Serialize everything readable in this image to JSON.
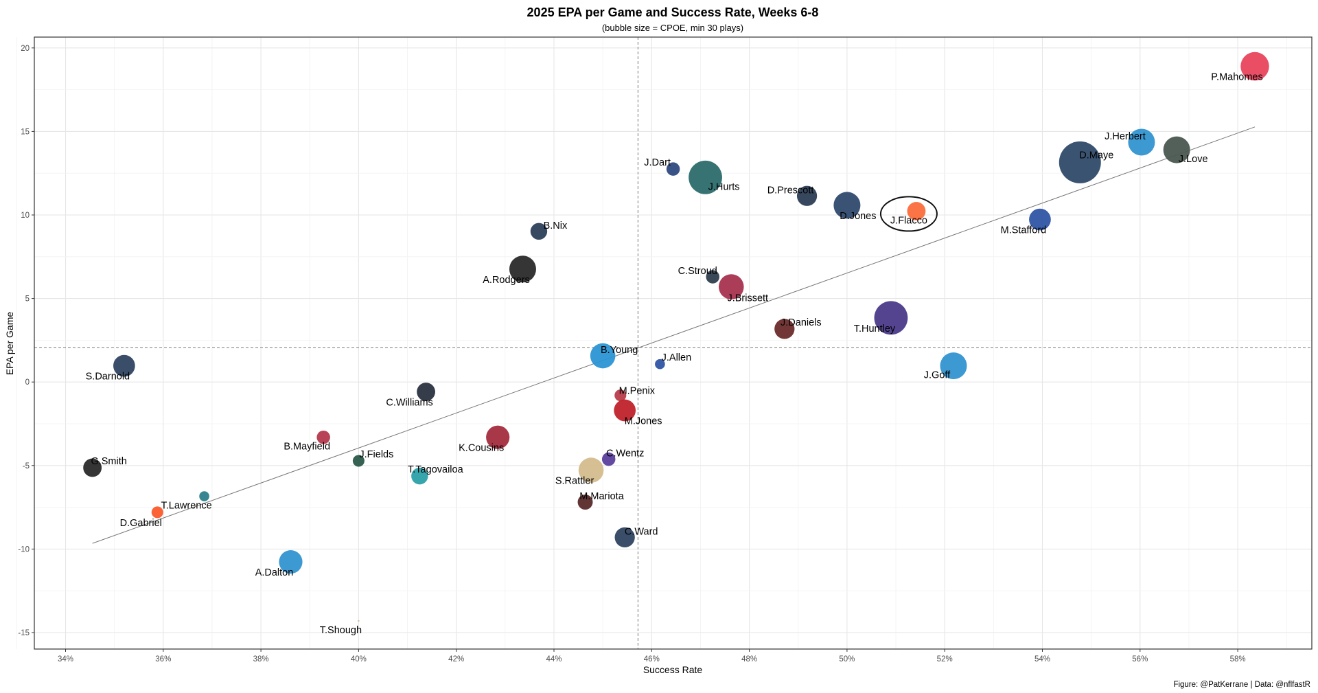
{
  "chart_data": {
    "type": "scatter",
    "title": "2025 EPA per Game and Success Rate, Weeks 6-8",
    "subtitle": "(bubble size = CPOE, min 30 plays)",
    "xlabel": "Success Rate",
    "ylabel": "EPA per Game",
    "caption": "Figure: @PatKerrane | Data: @nflfastR",
    "xlim": [
      33.4,
      59.6
    ],
    "ylim": [
      -15.8,
      20.6
    ],
    "x_ticks": [
      34,
      36,
      38,
      40,
      42,
      44,
      46,
      48,
      50,
      52,
      54,
      56,
      58
    ],
    "x_tick_labels": [
      "34%",
      "36%",
      "38%",
      "40%",
      "42%",
      "44%",
      "46%",
      "48%",
      "50%",
      "52%",
      "54%",
      "56%",
      "58%"
    ],
    "y_ticks": [
      -15,
      -10,
      -5,
      0,
      5,
      10,
      15,
      20
    ],
    "y_tick_labels": [
      "-15",
      "-10",
      "-5",
      "0",
      "5",
      "10",
      "15",
      "20"
    ],
    "grid": true,
    "reference_lines": {
      "x_mean": 45.72,
      "y_mean": 2.07
    },
    "trend_line": {
      "x": [
        34.55,
        58.35
      ],
      "y": [
        -9.66,
        15.27
      ]
    },
    "highlight": "J.Flacco",
    "points": [
      {
        "name": "P.Mahomes",
        "x": 58.35,
        "y": 18.9,
        "size": 17,
        "color": "#e8445d"
      },
      {
        "name": "J.Herbert",
        "x": 56.03,
        "y": 14.36,
        "size": 16,
        "color": "#3194d0"
      },
      {
        "name": "J.Love",
        "x": 56.75,
        "y": 13.9,
        "size": 16,
        "color": "#4a5750"
      },
      {
        "name": "D.Maye",
        "x": 54.77,
        "y": 13.15,
        "size": 25,
        "color": "#2f4a68"
      },
      {
        "name": "J.Dart",
        "x": 46.44,
        "y": 12.75,
        "size": 8,
        "color": "#2f4a80"
      },
      {
        "name": "J.Hurts",
        "x": 47.1,
        "y": 12.25,
        "size": 20,
        "color": "#2c6b6b"
      },
      {
        "name": "D.Prescott",
        "x": 49.18,
        "y": 11.14,
        "size": 12,
        "color": "#2c3e55"
      },
      {
        "name": "D.Jones",
        "x": 50.0,
        "y": 10.58,
        "size": 16,
        "color": "#2f4a6e"
      },
      {
        "name": "J.Flacco",
        "x": 51.42,
        "y": 10.23,
        "size": 11,
        "color": "#fb6d3c"
      },
      {
        "name": "M.Stafford",
        "x": 53.95,
        "y": 9.73,
        "size": 13,
        "color": "#2f55a4"
      },
      {
        "name": "B.Nix",
        "x": 43.69,
        "y": 9.02,
        "size": 10,
        "color": "#2d3f5a"
      },
      {
        "name": "A.Rodgers",
        "x": 43.36,
        "y": 6.76,
        "size": 16,
        "color": "#2a2a2a"
      },
      {
        "name": "C.Stroud",
        "x": 47.25,
        "y": 6.3,
        "size": 8,
        "color": "#2f3e4f"
      },
      {
        "name": "J.Brissett",
        "x": 47.63,
        "y": 5.7,
        "size": 15,
        "color": "#a8334f"
      },
      {
        "name": "J.Daniels",
        "x": 48.72,
        "y": 3.18,
        "size": 12,
        "color": "#6b2b2b"
      },
      {
        "name": "T.Huntley",
        "x": 50.9,
        "y": 3.84,
        "size": 20,
        "color": "#4b3a8a"
      },
      {
        "name": "J.Goff",
        "x": 52.18,
        "y": 0.97,
        "size": 16,
        "color": "#3194d0"
      },
      {
        "name": "B.Young",
        "x": 45.0,
        "y": 1.57,
        "size": 15,
        "color": "#2b95d5"
      },
      {
        "name": "J.Allen",
        "x": 46.17,
        "y": 1.07,
        "size": 6,
        "color": "#2f55a4"
      },
      {
        "name": "S.Darnold",
        "x": 35.2,
        "y": 0.97,
        "size": 13,
        "color": "#2f4462"
      },
      {
        "name": "C.Williams",
        "x": 41.38,
        "y": -0.59,
        "size": 11,
        "color": "#2b3340"
      },
      {
        "name": "M.Penix",
        "x": 45.36,
        "y": -0.8,
        "size": 7,
        "color": "#b83c4a"
      },
      {
        "name": "M.Jones",
        "x": 45.45,
        "y": -1.7,
        "size": 13,
        "color": "#c0222a"
      },
      {
        "name": "B.Mayfield",
        "x": 39.28,
        "y": -3.31,
        "size": 8,
        "color": "#b4394d"
      },
      {
        "name": "K.Cousins",
        "x": 42.85,
        "y": -3.31,
        "size": 14,
        "color": "#a32c3d"
      },
      {
        "name": "C.Wentz",
        "x": 45.12,
        "y": -4.62,
        "size": 8,
        "color": "#5b3f9c"
      },
      {
        "name": "J.Fields",
        "x": 40.0,
        "y": -4.72,
        "size": 7,
        "color": "#2b5a4a"
      },
      {
        "name": "G.Smith",
        "x": 34.55,
        "y": -5.13,
        "size": 11,
        "color": "#2a2a2a"
      },
      {
        "name": "S.Rattler",
        "x": 44.76,
        "y": -5.28,
        "size": 15,
        "color": "#d3bc8d"
      },
      {
        "name": "T.Tagovailoa",
        "x": 41.25,
        "y": -5.63,
        "size": 10,
        "color": "#2ba0a8"
      },
      {
        "name": "T.Lawrence",
        "x": 36.84,
        "y": -6.84,
        "size": 6,
        "color": "#2d7f8c"
      },
      {
        "name": "D.Gabriel",
        "x": 35.88,
        "y": -7.8,
        "size": 7,
        "color": "#fb5a2a"
      },
      {
        "name": "M.Mariota",
        "x": 44.64,
        "y": -7.19,
        "size": 9,
        "color": "#5a2a2a"
      },
      {
        "name": "C.Ward",
        "x": 45.45,
        "y": -9.3,
        "size": 12,
        "color": "#2f4462"
      },
      {
        "name": "A.Dalton",
        "x": 38.61,
        "y": -10.77,
        "size": 14,
        "color": "#3194d0"
      },
      {
        "name": "T.Shough",
        "x": 40.0,
        "y": -14.3,
        "size": 1,
        "color": "#d3bc8d"
      }
    ]
  }
}
